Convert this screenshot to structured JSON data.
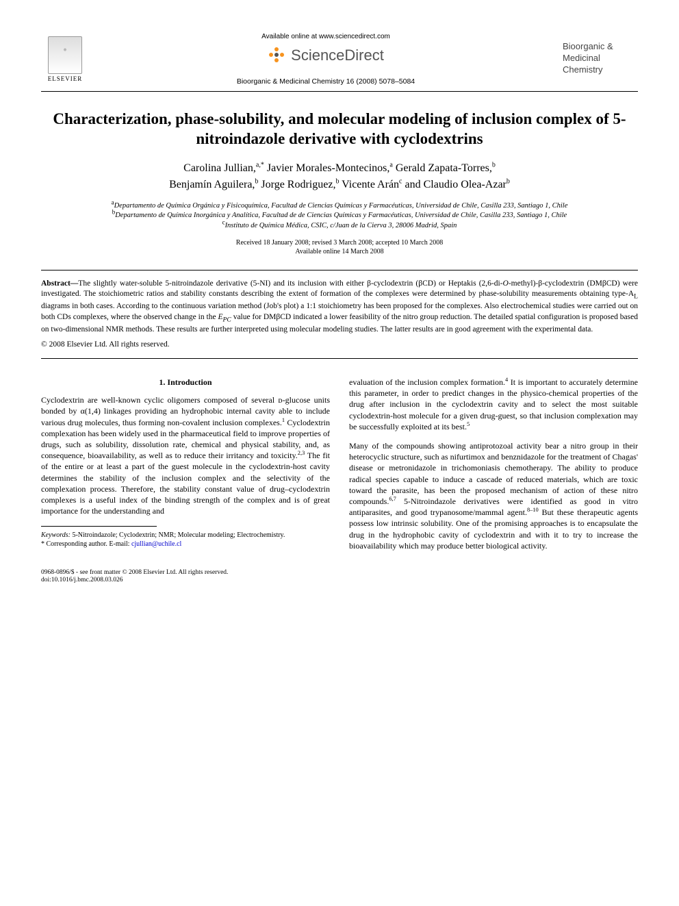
{
  "header": {
    "available_online": "Available online at www.sciencedirect.com",
    "sd_brand": "ScienceDirect",
    "citation": "Bioorganic & Medicinal Chemistry 16 (2008) 5078–5084",
    "publisher": "ELSEVIER",
    "journal_line1": "Bioorganic &",
    "journal_line2": "Medicinal",
    "journal_line3": "Chemistry"
  },
  "paper": {
    "title": "Characterization, phase-solubility, and molecular modeling of inclusion complex of 5-nitroindazole derivative with cyclodextrins",
    "authors_line1_html": "Carolina Jullian,<sup>a,*</sup> Javier Morales-Montecinos,<sup>a</sup> Gerald Zapata-Torres,<sup>b</sup>",
    "authors_line2_html": "Benjamín Aguilera,<sup>b</sup> Jorge Rodriguez,<sup>b</sup> Vicente Arán<sup>c</sup> and Claudio Olea-Azar<sup>b</sup>",
    "affil_a_html": "<sup>a</sup>Departamento de Química Orgánica y Fisicoquímica, Facultad de Ciencias Químicas y Farmacéuticas, Universidad de Chile, Casilla 233, Santiago 1, Chile",
    "affil_b_html": "<sup>b</sup>Departamento de Química Inorgánica y Analítica, Facultad de de Ciencias Químicas y Farmacéuticas, Universidad de Chile, Casilla 233, Santiago 1, Chile",
    "affil_c_html": "<sup>c</sup>Instituto de Química Médica, CSIC, c/Juan de la Cierva 3, 28006 Madrid, Spain",
    "dates_line1": "Received 18 January 2008; revised 3 March 2008; accepted 10 March 2008",
    "dates_line2": "Available online 14 March 2008"
  },
  "abstract": {
    "lead": "Abstract—",
    "body_html": "The slightly water-soluble 5-nitroindazole derivative (5-NI) and its inclusion with either β-cyclodextrin (βCD) or Heptakis (2,6-di-<i>O</i>-methyl)-β-cyclodextrin (DMβCD) were investigated. The stoichiometric ratios and stability constants describing the extent of formation of the complexes were determined by phase-solubility measurements obtaining type-A<sub>L</sub> diagrams in both cases. According to the continuous variation method (Job's plot) a 1:1 stoichiometry has been proposed for the complexes. Also electrochemical studies were carried out on both CDs complexes, where the observed change in the <i>E<sub>PC</sub></i> value for DMβCD indicated a lower feasibility of the nitro group reduction. The detailed spatial configuration is proposed based on two-dimensional NMR methods. These results are further interpreted using molecular modeling studies. The latter results are in good agreement with the experimental data.",
    "copyright": "© 2008 Elsevier Ltd. All rights reserved."
  },
  "sections": {
    "intro_heading": "1. Introduction",
    "intro_p1_html": "Cyclodextrin are well-known cyclic oligomers composed of several ᴅ-glucose units bonded by α(1,4) linkages providing an hydrophobic internal cavity able to include various drug molecules, thus forming non-covalent inclusion complexes.<sup>1</sup> Cyclodextrin complexation has been widely used in the pharmaceutical field to improve properties of drugs, such as solubility, dissolution rate, chemical and physical stability, and, as consequence, bioavailability, as well as to reduce their irritancy and toxicity.<sup>2,3</sup> The fit of the entire or at least a part of the guest molecule in the cyclodextrin-host cavity determines the stability of the inclusion complex and the selectivity of the complexation process. Therefore, the stability constant value of drug–cyclodextrin complexes is a useful index of the binding strength of the complex and is of great importance for the understanding and",
    "intro_p1b_html": "evaluation of the inclusion complex formation.<sup>4</sup> It is important to accurately determine this parameter, in order to predict changes in the physico-chemical properties of the drug after inclusion in the cyclodextrin cavity and to select the most suitable cyclodextrin-host molecule for a given drug-guest, so that inclusion complexation may be successfully exploited at its best.<sup>5</sup>",
    "intro_p2_html": "Many of the compounds showing antiprotozoal activity bear a nitro group in their heterocyclic structure, such as nifurtimox and benznidazole for the treatment of Chagas' disease or metronidazole in trichomoniasis chemotherapy. The ability to produce radical species capable to induce a cascade of reduced materials, which are toxic toward the parasite, has been the proposed mechanism of action of these nitro compounds.<sup>6,7</sup> 5-Nitroindazole derivatives were identified as good in vitro antiparasites, and good trypanosome/mammal agent.<sup>8–10</sup> But these therapeutic agents possess low intrinsic solubility. One of the promising approaches is to encapsulate the drug in the hydrophobic cavity of cyclodextrin and with it to try to increase the bioavailability which may produce better biological activity."
  },
  "footnotes": {
    "keywords_label": "Keywords:",
    "keywords": " 5-Nitroindazole; Cyclodextrin; NMR; Molecular modeling; Electrochemistry.",
    "corresponding": "* Corresponding author. E-mail: ",
    "email": "cjullian@uchile.cl"
  },
  "footer": {
    "line1": "0968-0896/$ - see front matter © 2008 Elsevier Ltd. All rights reserved.",
    "line2": "doi:10.1016/j.bmc.2008.03.026"
  }
}
